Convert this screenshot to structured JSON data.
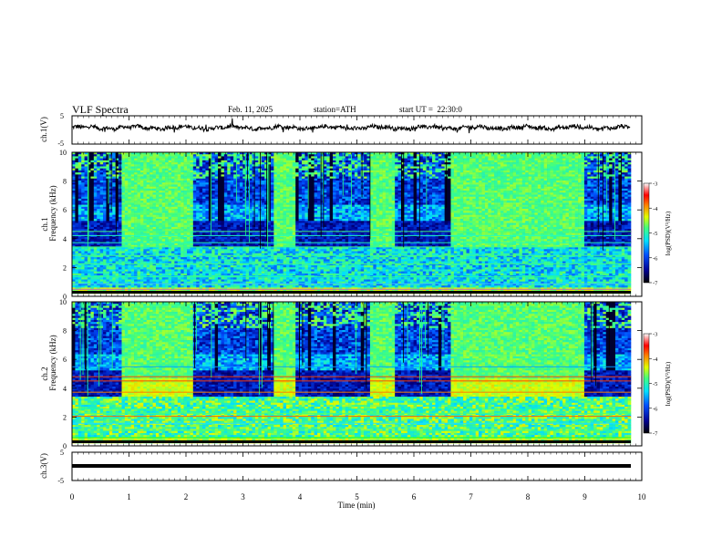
{
  "header": {
    "title": "VLF Spectra",
    "date": "Feb. 11, 2025",
    "station": "station=ATH",
    "start_ut": "start UT =  22:30:0"
  },
  "chart_data": [
    {
      "type": "line",
      "ylabel": "ch.1(V)",
      "ylim": [
        -5,
        5
      ],
      "yticks": [
        "5",
        "-5"
      ],
      "baseline": 0.8,
      "xlim": [
        0,
        10
      ]
    },
    {
      "type": "heatmap",
      "ylabel": "ch.1\nFrequency (kHz)",
      "ylim": [
        0,
        10
      ],
      "yticks": [
        "0",
        "2",
        "4",
        "6",
        "8",
        "10"
      ],
      "xlim": [
        0,
        9.8
      ],
      "colorbar": {
        "label": "log(PSD)(V²/Hz)",
        "range": [
          -7,
          -3
        ],
        "ticks": [
          "-3",
          "-4",
          "-5",
          "-6",
          "-7"
        ]
      },
      "quiet_intervals_min": [
        [
          0.85,
          2.15
        ],
        [
          3.55,
          3.9
        ],
        [
          5.25,
          5.65
        ],
        [
          6.65,
          9.0
        ]
      ]
    },
    {
      "type": "heatmap",
      "ylabel": "ch.2\nFrequency (kHz)",
      "ylim": [
        0,
        10
      ],
      "yticks": [
        "0",
        "2",
        "4",
        "6",
        "8",
        "10"
      ],
      "xlim": [
        0,
        9.8
      ],
      "colorbar": {
        "label": "log(PSD)(V²/Hz)",
        "range": [
          -7,
          -3
        ],
        "ticks": [
          "-3",
          "-4",
          "-5",
          "-6",
          "-7"
        ]
      },
      "quiet_intervals_min": [
        [
          0.85,
          2.15
        ],
        [
          3.55,
          3.9
        ],
        [
          5.25,
          5.65
        ],
        [
          6.65,
          9.0
        ]
      ]
    },
    {
      "type": "line",
      "ylabel": "ch.3(V)",
      "ylim": [
        -5,
        5
      ],
      "yticks": [
        "5",
        "-5"
      ],
      "baseline": 1.0,
      "xlim": [
        0,
        10
      ]
    }
  ],
  "xaxis": {
    "label": "Time (min)",
    "ticks": [
      "0",
      "1",
      "2",
      "3",
      "4",
      "5",
      "6",
      "7",
      "8",
      "9",
      "10"
    ],
    "range": [
      0,
      10
    ]
  }
}
